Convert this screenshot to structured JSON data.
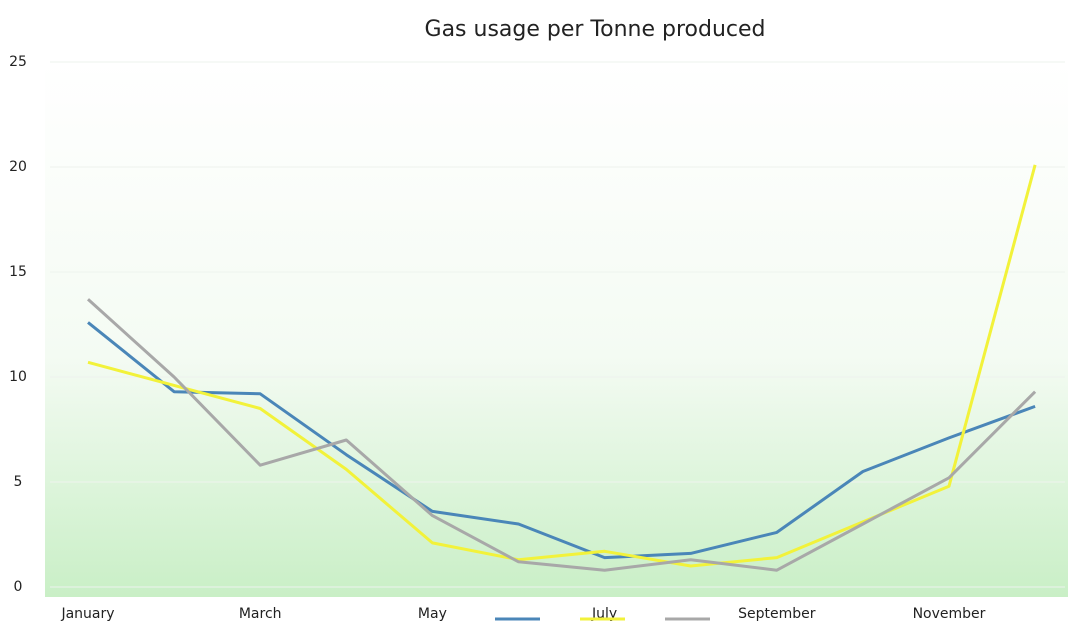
{
  "chart_data": {
    "type": "line",
    "title": "Gas usage per Tonne produced",
    "categories": [
      "January",
      null,
      "March",
      null,
      "May",
      null,
      "July",
      null,
      "September",
      null,
      "November",
      null
    ],
    "series": [
      {
        "color": "#4a86b8",
        "values": [
          12.6,
          9.3,
          9.2,
          6.3,
          3.6,
          3.0,
          1.4,
          1.6,
          2.6,
          5.5,
          7.1,
          8.6
        ]
      },
      {
        "color": "#f2f23a",
        "values": [
          10.7,
          9.6,
          8.5,
          5.6,
          2.1,
          1.3,
          1.7,
          1.0,
          1.4,
          3.1,
          4.8,
          20.1
        ]
      },
      {
        "color": "#a8a8a8",
        "values": [
          13.7,
          10.0,
          5.8,
          7.0,
          3.4,
          1.2,
          0.8,
          1.3,
          0.8,
          3.0,
          5.2,
          9.3
        ]
      }
    ],
    "ylim": [
      0,
      25
    ],
    "yticks": [
      0,
      5,
      10,
      15,
      20,
      25
    ],
    "grid": true,
    "legend": "bottom"
  }
}
